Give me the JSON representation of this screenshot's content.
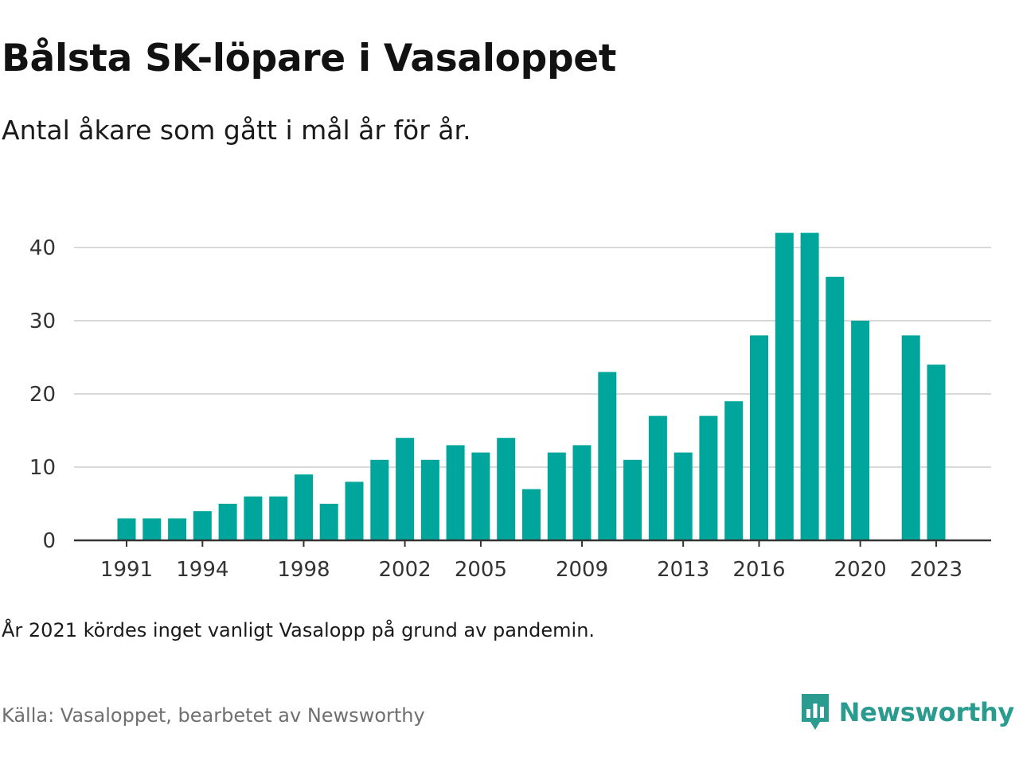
{
  "header": {
    "title": "Bålsta SK-löpare i Vasaloppet",
    "subtitle": "Antal åkare som gått i mål år för år."
  },
  "footer": {
    "note": "År 2021 kördes inget vanligt Vasalopp på grund av pandemin.",
    "source": "Källa: Vasaloppet, bearbetet av Newsworthy",
    "brand": "Newsworthy",
    "brand_icon": "newsworthy-logo-icon"
  },
  "colors": {
    "bar": "#00a69c",
    "gridline": "#d9d9d9",
    "axis": "#333333",
    "brand": "#2a9c8f"
  },
  "chart_data": {
    "type": "bar",
    "title": "Bålsta SK-löpare i Vasaloppet",
    "subtitle": "Antal åkare som gått i mål år för år.",
    "xlabel": "",
    "ylabel": "",
    "categories": [
      1991,
      1992,
      1993,
      1994,
      1995,
      1996,
      1997,
      1998,
      1999,
      2000,
      2001,
      2002,
      2003,
      2004,
      2005,
      2006,
      2007,
      2008,
      2009,
      2010,
      2011,
      2012,
      2013,
      2014,
      2015,
      2016,
      2017,
      2018,
      2019,
      2020,
      2021,
      2022,
      2023
    ],
    "values": [
      3,
      3,
      3,
      4,
      5,
      6,
      6,
      9,
      5,
      8,
      11,
      14,
      11,
      13,
      12,
      14,
      7,
      12,
      13,
      23,
      11,
      17,
      12,
      17,
      19,
      28,
      42,
      42,
      36,
      30,
      null,
      28,
      24
    ],
    "x_tick_labels": [
      "1991",
      "1994",
      "1998",
      "2002",
      "2005",
      "2009",
      "2013",
      "2016",
      "2020",
      "2023"
    ],
    "y_ticks": [
      0,
      10,
      20,
      30,
      40
    ],
    "ylim": [
      0,
      42
    ],
    "grid": true
  }
}
